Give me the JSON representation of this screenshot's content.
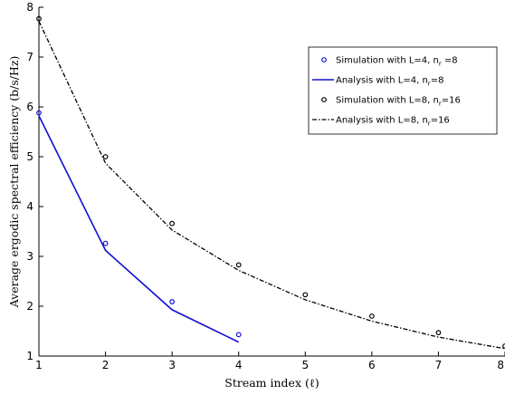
{
  "chart_data": {
    "type": "line",
    "xlabel": "Stream index (ℓ)",
    "ylabel": "Average ergodic spectral efficiency (b/s/Hz)",
    "xlim": [
      1,
      8
    ],
    "ylim": [
      1,
      8
    ],
    "xticks": [
      "1",
      "2",
      "3",
      "4",
      "5",
      "6",
      "7",
      "8"
    ],
    "yticks": [
      "1",
      "2",
      "3",
      "4",
      "5",
      "6",
      "7",
      "8"
    ],
    "grid": false,
    "legend_position": "top-right",
    "series": [
      {
        "name": "Simulation with L=4, n_r=8",
        "legend_main": "Simulation with L=4, n",
        "legend_sub": "r",
        "legend_tail": " =8",
        "style": "markers",
        "color": "#1010d0",
        "x": [
          1,
          2,
          3,
          4
        ],
        "y": [
          5.88,
          3.26,
          2.09,
          1.43
        ]
      },
      {
        "name": "Analysis with L=4, n_r=8",
        "legend_main": "Analysis with L=4, n",
        "legend_sub": "r",
        "legend_tail": "=8",
        "style": "solid",
        "color": "#1010d0",
        "x": [
          1,
          2,
          3,
          4
        ],
        "y": [
          5.82,
          3.12,
          1.93,
          1.28
        ]
      },
      {
        "name": "Simulation with L=8, n_r=16",
        "legend_main": "Simulation with L=8, n",
        "legend_sub": "r",
        "legend_tail": "=16",
        "style": "markers",
        "color": "#000000",
        "x": [
          1,
          2,
          3,
          4,
          5,
          6,
          7,
          8
        ],
        "y": [
          7.77,
          5.0,
          3.66,
          2.83,
          2.23,
          1.8,
          1.47,
          1.2
        ]
      },
      {
        "name": "Analysis with L=8, n_r=16",
        "legend_main": "Analysis with L=8, n",
        "legend_sub": "r",
        "legend_tail": "=16",
        "style": "dashdot",
        "color": "#000000",
        "x": [
          1,
          2,
          3,
          4,
          5,
          6,
          7,
          8
        ],
        "y": [
          7.72,
          4.87,
          3.53,
          2.72,
          2.13,
          1.7,
          1.38,
          1.15
        ]
      }
    ]
  }
}
